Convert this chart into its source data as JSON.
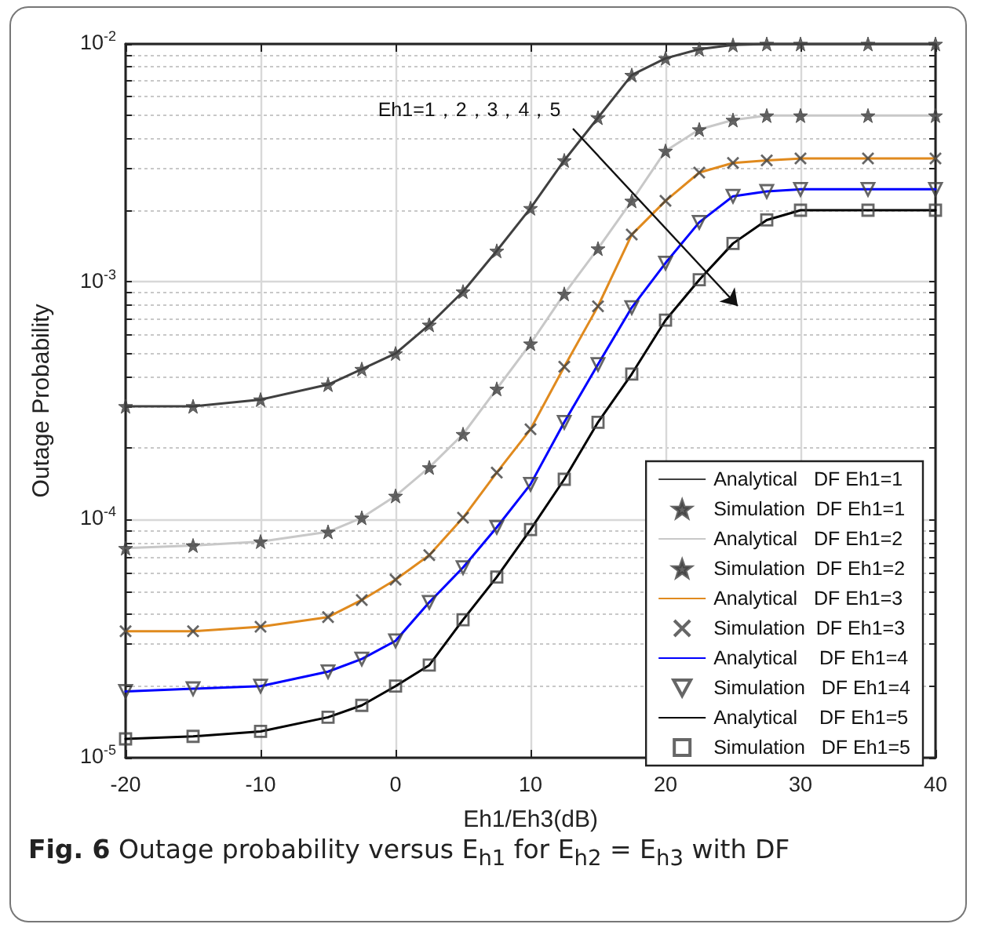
{
  "chart_data": {
    "type": "line",
    "title": "Fig. 6 Outage probability versus E$_{h1}$ for E$_{h2}$ = E$_{h3}$ with DF",
    "xlabel": "Eh1/Eh3(dB)",
    "ylabel": "Outage Probability",
    "annotations": [
      "Eh1=1，2，3，4，5"
    ],
    "x": [
      -20,
      -15,
      -10,
      -5,
      -2.5,
      0,
      2.5,
      5,
      7.5,
      10,
      12.5,
      15,
      17.5,
      20,
      22.5,
      25,
      27.5,
      30,
      35,
      40
    ],
    "series": [
      {
        "name": "Analytical   DF Eh1=1",
        "type": "line",
        "marker": "none",
        "color": "#404040",
        "values": [
          0.0003,
          0.0003,
          0.00032,
          0.00037,
          0.00043,
          0.0005,
          0.00066,
          0.00091,
          0.00135,
          0.00204,
          0.00324,
          0.0049,
          0.0074,
          0.0087,
          0.0095,
          0.0099,
          0.01,
          0.01,
          0.01,
          0.01
        ]
      },
      {
        "name": "Simulation  DF Eh1=1",
        "type": "scatter",
        "marker": "star",
        "color": "#404040",
        "values": [
          0.0003,
          0.0003,
          0.00032,
          0.00037,
          0.00043,
          0.0005,
          0.00066,
          0.00091,
          0.00135,
          0.00204,
          0.00324,
          0.0049,
          0.0074,
          0.0087,
          0.0095,
          0.0099,
          0.01,
          0.01,
          0.01,
          0.01
        ]
      },
      {
        "name": "Analytical   DF Eh1=2",
        "type": "line",
        "marker": "none",
        "color": "#c8c8c8",
        "values": [
          7.6e-05,
          7.8e-05,
          8.1e-05,
          8.9e-05,
          0.000102,
          0.000126,
          0.000166,
          0.000229,
          0.000355,
          0.00055,
          0.00089,
          0.00138,
          0.00219,
          0.00355,
          0.00437,
          0.00479,
          0.005,
          0.005,
          0.005,
          0.005
        ]
      },
      {
        "name": "Simulation  DF Eh1=2",
        "type": "scatter",
        "marker": "star",
        "color": "#404040",
        "values": [
          7.6e-05,
          7.8e-05,
          8.1e-05,
          8.9e-05,
          0.000102,
          0.000126,
          0.000166,
          0.000229,
          0.000355,
          0.00055,
          0.00089,
          0.00138,
          0.00219,
          0.00355,
          0.00437,
          0.00479,
          0.005,
          0.005,
          0.005,
          0.005
        ]
      },
      {
        "name": "Analytical   DF Eh1=3",
        "type": "line",
        "marker": "none",
        "color": "#e08a1e",
        "values": [
          3.4e-05,
          3.4e-05,
          3.55e-05,
          3.9e-05,
          4.6e-05,
          5.6e-05,
          7.1e-05,
          0.000102,
          0.000158,
          0.00024,
          0.00044,
          0.00079,
          0.00158,
          0.00219,
          0.00288,
          0.00316,
          0.00324,
          0.0033,
          0.0033,
          0.0033
        ]
      },
      {
        "name": "Simulation  DF Eh1=3",
        "type": "scatter",
        "marker": "cross",
        "color": "#404040",
        "values": [
          3.4e-05,
          3.4e-05,
          3.55e-05,
          3.9e-05,
          4.6e-05,
          5.6e-05,
          7.1e-05,
          0.000102,
          0.000158,
          0.00024,
          0.00044,
          0.00079,
          0.00158,
          0.00219,
          0.00288,
          0.00316,
          0.00324,
          0.0033,
          0.0033,
          0.0033
        ]
      },
      {
        "name": "Analytical    DF Eh1=4",
        "type": "line",
        "marker": "none",
        "color": "#0000ff",
        "values": [
          1.9e-05,
          1.95e-05,
          2e-05,
          2.3e-05,
          2.6e-05,
          3.1e-05,
          4.5e-05,
          6.3e-05,
          9.3e-05,
          0.000141,
          0.000257,
          0.00045,
          0.00078,
          0.0012,
          0.00178,
          0.00229,
          0.0024,
          0.00245,
          0.00245,
          0.00245
        ]
      },
      {
        "name": "Simulation   DF Eh1=4",
        "type": "scatter",
        "marker": "triangle",
        "color": "#404040",
        "values": [
          1.9e-05,
          1.95e-05,
          2e-05,
          2.3e-05,
          2.6e-05,
          3.1e-05,
          4.5e-05,
          6.3e-05,
          9.3e-05,
          0.000141,
          0.000257,
          0.00045,
          0.00078,
          0.0012,
          0.00178,
          0.00229,
          0.0024,
          0.00245,
          0.00245,
          0.00245
        ]
      },
      {
        "name": "Analytical    DF Eh1=5",
        "type": "line",
        "marker": "none",
        "color": "#000000",
        "values": [
          1.2e-05,
          1.23e-05,
          1.29e-05,
          1.48e-05,
          1.66e-05,
          2e-05,
          2.45e-05,
          3.8e-05,
          5.75e-05,
          9.1e-05,
          0.000148,
          0.000257,
          0.00041,
          0.00069,
          0.00102,
          0.00145,
          0.00182,
          0.002,
          0.002,
          0.002
        ]
      },
      {
        "name": "Simulation   DF Eh1=5",
        "type": "scatter",
        "marker": "square",
        "color": "#404040",
        "values": [
          1.2e-05,
          1.23e-05,
          1.29e-05,
          1.48e-05,
          1.66e-05,
          2e-05,
          2.45e-05,
          3.8e-05,
          5.75e-05,
          9.1e-05,
          0.000148,
          0.000257,
          0.00041,
          0.00069,
          0.00102,
          0.00145,
          0.00182,
          0.002,
          0.002,
          0.002
        ]
      }
    ],
    "log": "y",
    "xlim": [
      -20,
      40
    ],
    "xticks": [
      -20,
      -10,
      0,
      10,
      20,
      30,
      40
    ],
    "ylim": [
      1e-05,
      0.01
    ],
    "yticks": [
      {
        "value": 1e-05,
        "label": "10$^{-5}$"
      },
      {
        "value": 2e-05,
        "label": null
      },
      {
        "value": 3e-05,
        "label": null
      },
      {
        "value": 4e-05,
        "label": null
      },
      {
        "value": 5e-05,
        "label": null
      },
      {
        "value": 6e-05,
        "label": null
      },
      {
        "value": 7e-05,
        "label": null
      },
      {
        "value": 8e-05,
        "label": null
      },
      {
        "value": 9e-05,
        "label": null
      },
      {
        "value": 0.0001,
        "label": "10$^{-4}$"
      },
      {
        "value": 0.0002,
        "label": null
      },
      {
        "value": 0.0003,
        "label": null
      },
      {
        "value": 0.0004,
        "label": null
      },
      {
        "value": 0.0005,
        "label": null
      },
      {
        "value": 0.0006,
        "label": null
      },
      {
        "value": 0.0007,
        "label": null
      },
      {
        "value": 0.0008,
        "label": null
      },
      {
        "value": 0.0009,
        "label": null
      },
      {
        "value": 0.001,
        "label": "10$^{-3}$"
      },
      {
        "value": 0.002,
        "label": null
      },
      {
        "value": 0.003,
        "label": null
      },
      {
        "value": 0.004,
        "label": null
      },
      {
        "value": 0.005,
        "label": null
      },
      {
        "value": 0.006,
        "label": null
      },
      {
        "value": 0.007,
        "label": null
      },
      {
        "value": 0.008,
        "label": null
      },
      {
        "value": 0.009,
        "label": null
      },
      {
        "value": 0.01,
        "label": "10$^{-2}$"
      }
    ],
    "grid": true,
    "legend": "bottom right",
    "line_style": "solid"
  }
}
